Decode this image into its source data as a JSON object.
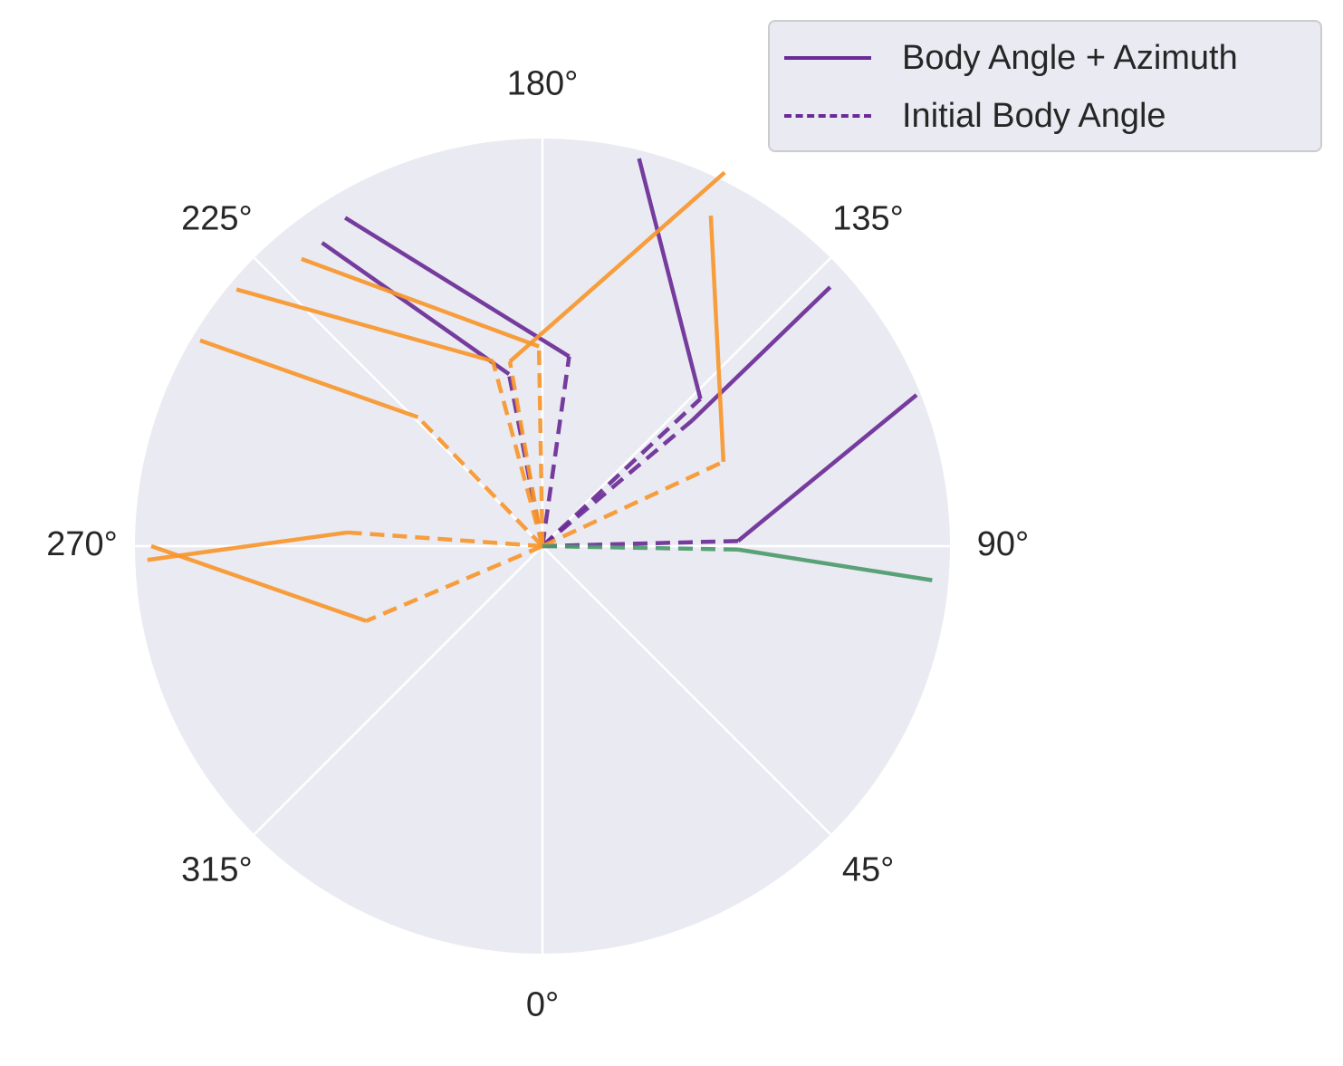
{
  "chart_data": {
    "type": "line",
    "projection": "polar",
    "theta_zero_location": "bottom",
    "theta_direction": "counterclockwise",
    "theta_tick_labels": [
      "0°",
      "45°",
      "90°",
      "135°",
      "180°",
      "225°",
      "270°",
      "315°"
    ],
    "theta_ticks_deg": [
      0,
      45,
      90,
      135,
      180,
      225,
      270,
      315
    ],
    "rlim": [
      0,
      10
    ],
    "radial_tick_labels_shown": false,
    "grid": true,
    "background": "#eaeaf2",
    "legend": {
      "placement": "top-right (outside axes)",
      "entries": [
        {
          "label": "Body Angle + Azimuth",
          "linestyle": "solid",
          "color": "#6a2b96"
        },
        {
          "label": "Initial Body Angle",
          "linestyle": "dashed",
          "color": "#6a2b96"
        }
      ]
    },
    "colors": {
      "purple": "#6a2b96",
      "orange": "#f7962d",
      "green": "#4c9a6c"
    },
    "series": [
      {
        "group": "purple",
        "initial_body_angle": {
          "theta": 172,
          "r": 4.7
        },
        "body_angle_plus_azimuth": {
          "theta": 211,
          "r": 9.4
        }
      },
      {
        "group": "purple",
        "initial_body_angle": {
          "theta": 191,
          "r": 4.3
        },
        "body_angle_plus_azimuth": {
          "theta": 216,
          "r": 9.2
        }
      },
      {
        "group": "purple",
        "initial_body_angle": {
          "theta": 133,
          "r": 5.3
        },
        "body_angle_plus_azimuth": {
          "theta": 166,
          "r": 9.8
        }
      },
      {
        "group": "purple",
        "initial_body_angle": {
          "theta": 130,
          "r": 4.8
        },
        "body_angle_plus_azimuth": {
          "theta": 132,
          "r": 9.5
        }
      },
      {
        "group": "purple",
        "initial_body_angle": {
          "theta": 91.5,
          "r": 4.8
        },
        "body_angle_plus_azimuth": {
          "theta": 112,
          "r": 9.9
        }
      },
      {
        "group": "orange",
        "initial_body_angle": {
          "theta": 181,
          "r": 4.9
        },
        "body_angle_plus_azimuth": {
          "theta": 220,
          "r": 9.2
        }
      },
      {
        "group": "orange",
        "initial_body_angle": {
          "theta": 190,
          "r": 4.6
        },
        "body_angle_plus_azimuth": {
          "theta": 154,
          "r": 10.2
        }
      },
      {
        "group": "orange",
        "initial_body_angle": {
          "theta": 195,
          "r": 4.7
        },
        "body_angle_plus_azimuth": {
          "theta": 230,
          "r": 9.8
        }
      },
      {
        "group": "orange",
        "initial_body_angle": {
          "theta": 224,
          "r": 4.4
        },
        "body_angle_plus_azimuth": {
          "theta": 239,
          "r": 9.8
        }
      },
      {
        "group": "orange",
        "initial_body_angle": {
          "theta": 115,
          "r": 4.9
        },
        "body_angle_plus_azimuth": {
          "theta": 153,
          "r": 9.1
        }
      },
      {
        "group": "orange",
        "initial_body_angle": {
          "theta": 266,
          "r": 4.8
        },
        "body_angle_plus_azimuth": {
          "theta": 272,
          "r": 9.7
        }
      },
      {
        "group": "orange",
        "initial_body_angle": {
          "theta": 293,
          "r": 4.7
        },
        "body_angle_plus_azimuth": {
          "theta": 270,
          "r": 9.6
        }
      },
      {
        "group": "green",
        "initial_body_angle": {
          "theta": 89,
          "r": 4.8
        },
        "body_angle_plus_azimuth": {
          "theta": 85,
          "r": 9.6
        }
      }
    ]
  }
}
